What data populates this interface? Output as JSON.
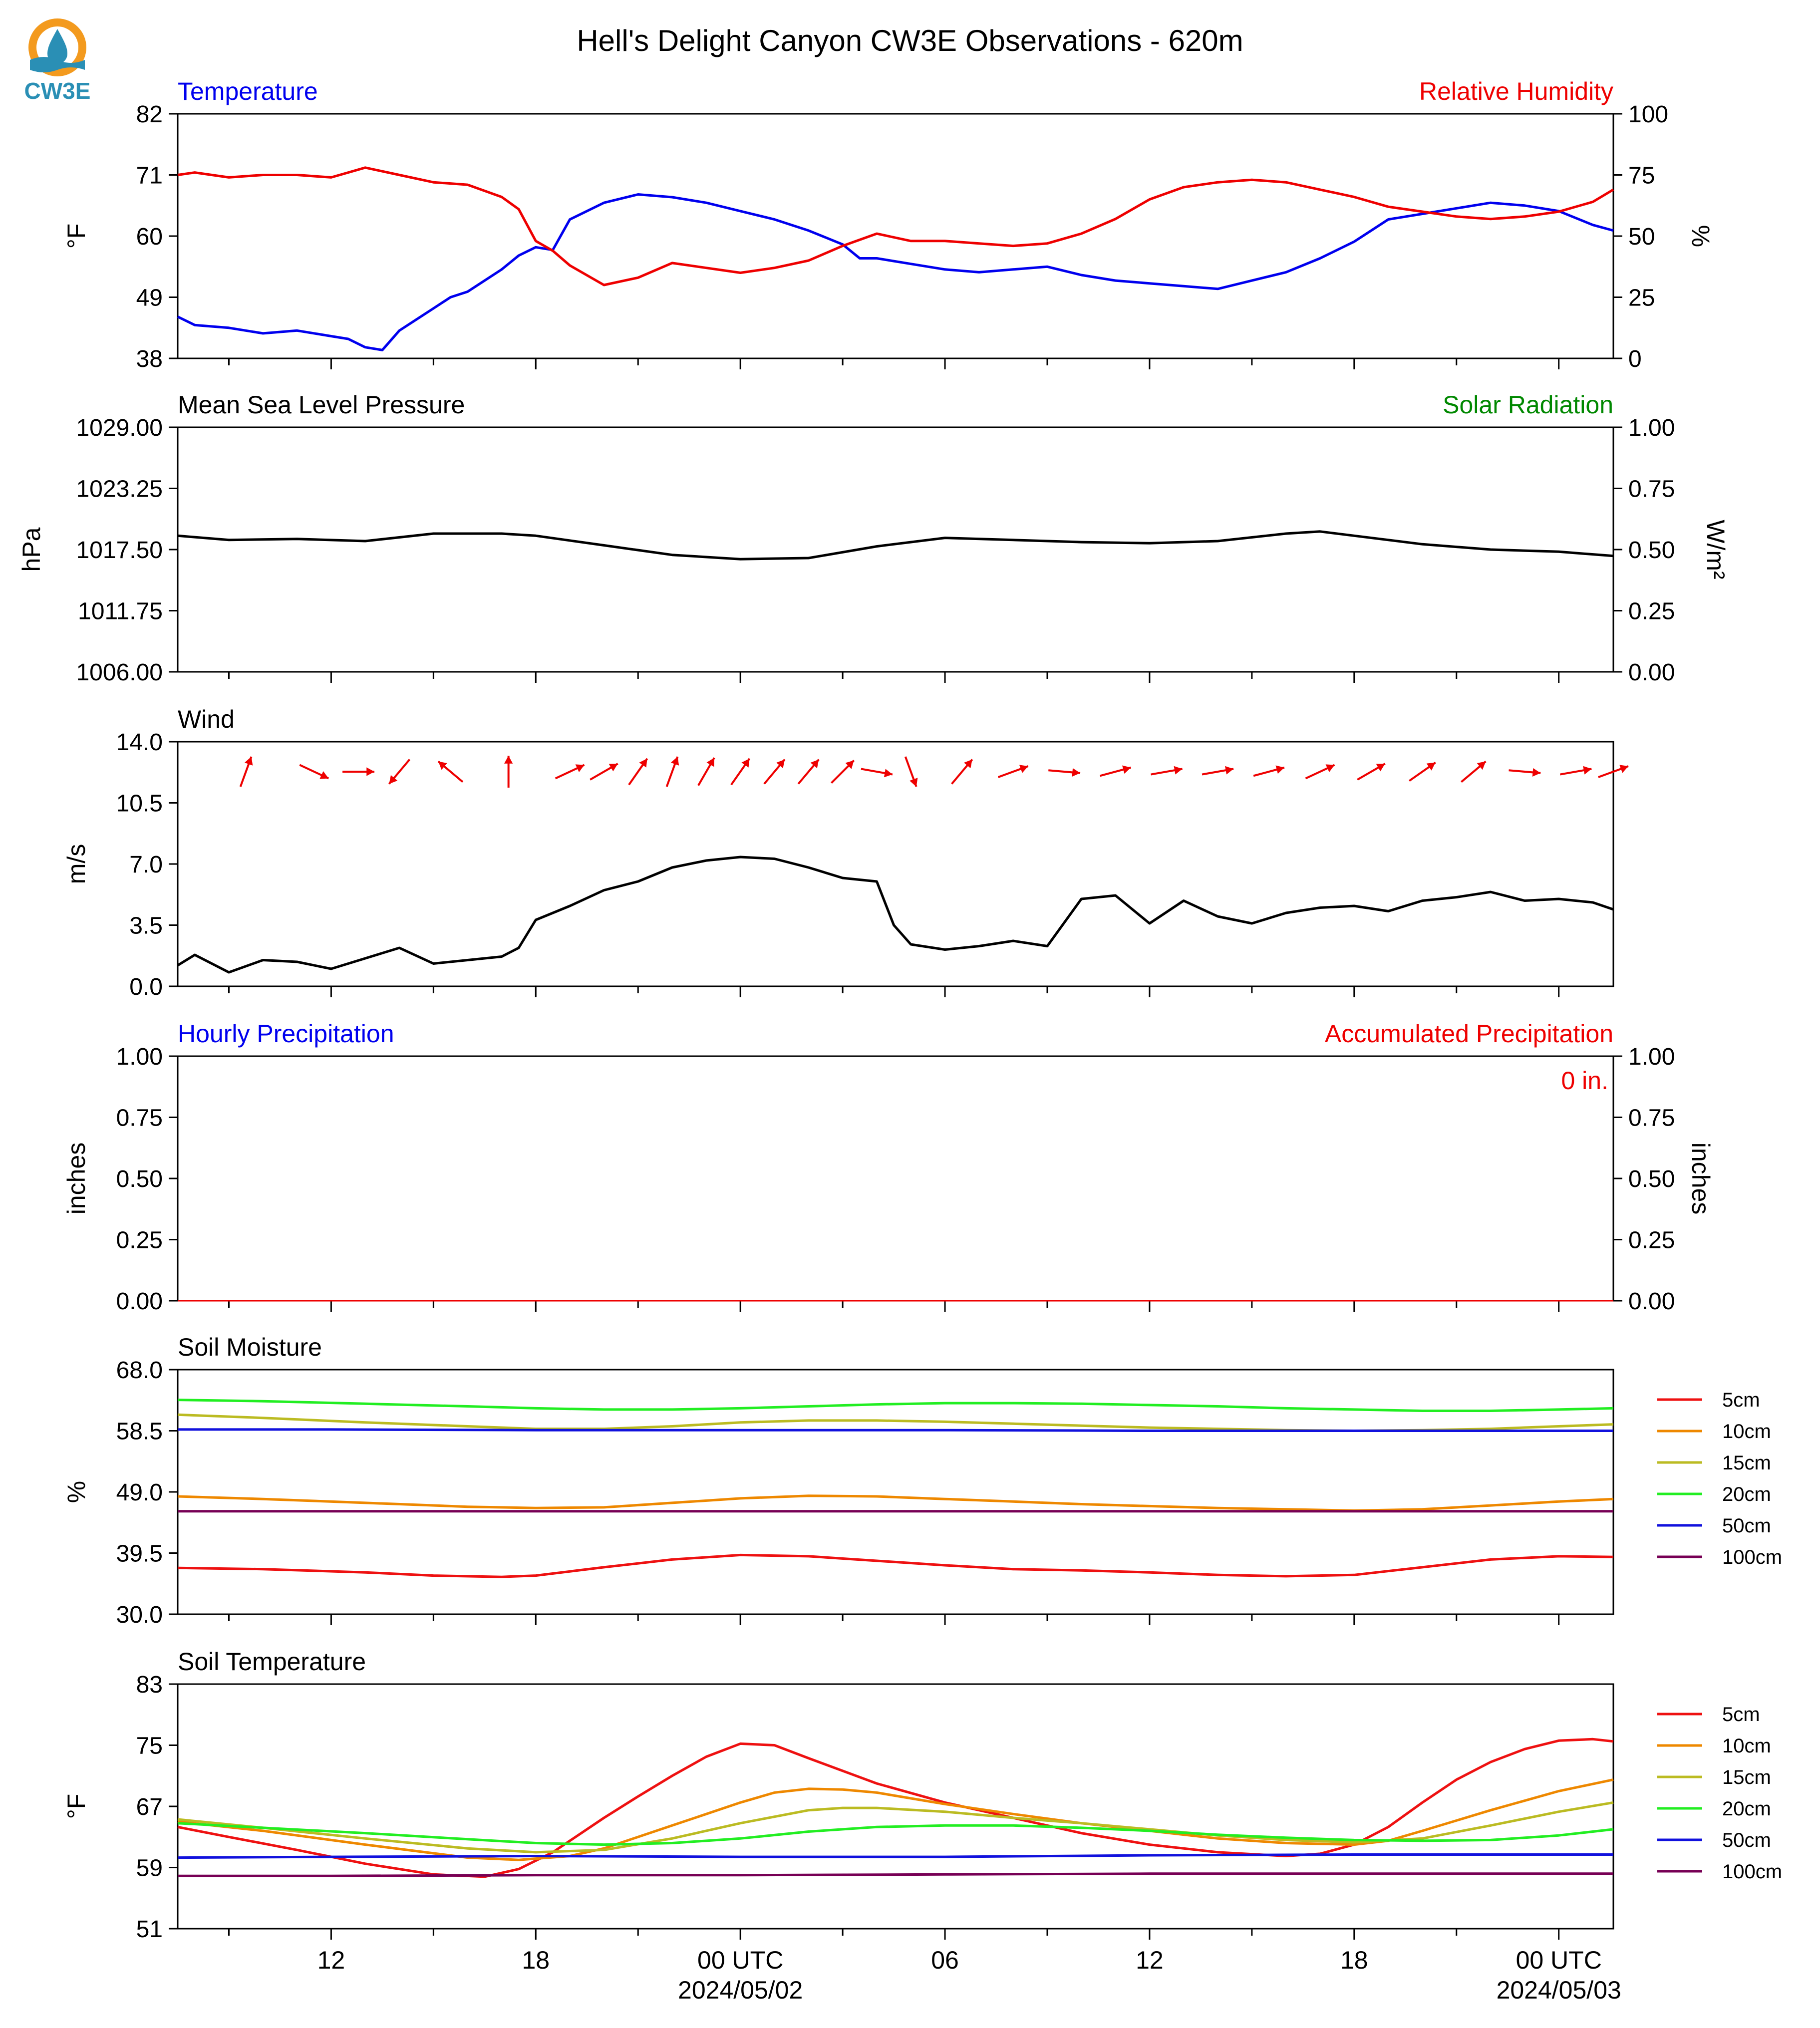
{
  "title": "Hell's Delight Canyon CW3E Observations - 620m",
  "logo": {
    "text": "CW3E",
    "color": "#2a8fb5"
  },
  "x_axis": {
    "tick_labels": [
      "12",
      "18",
      "00 UTC",
      "06",
      "12",
      "18",
      "00 UTC"
    ],
    "date_labels": [
      "2024/05/02",
      "2024/05/03"
    ],
    "start_hour": 7.5,
    "end_hour": 49.6,
    "label_hours": [
      12,
      18,
      24,
      30,
      36,
      42,
      48
    ],
    "date_hours": [
      24,
      48
    ]
  },
  "colors": {
    "temperature": "#0000ee",
    "humidity": "#ee0000",
    "pressure": "#000000",
    "solar": "#008800",
    "wind": "#000000",
    "wind_arrow": "#ee0000",
    "hourly_precip": "#0000ee",
    "accum_precip": "#ee0000",
    "depth": [
      "#ee1111",
      "#ee8800",
      "#bbbb22",
      "#22ee22",
      "#1111dd",
      "#770055"
    ]
  },
  "chart_data": [
    {
      "id": "temp-rh",
      "type": "line",
      "title_left": "Temperature",
      "title_right": "Relative Humidity",
      "ylabel_left": "°F",
      "ylabel_right": "%",
      "ylim_left": [
        38,
        82
      ],
      "yticks_left": [
        "82",
        "71",
        "60",
        "49",
        "38"
      ],
      "ylim_right": [
        0,
        100
      ],
      "yticks_right": [
        "100",
        "75",
        "50",
        "25",
        "0"
      ],
      "series": [
        {
          "name": "Temperature",
          "axis": "left",
          "x": [
            7.5,
            8,
            9,
            10,
            11,
            12,
            12.5,
            13,
            13.5,
            14,
            15,
            15.5,
            16,
            17,
            17.5,
            18,
            18.5,
            19,
            20,
            21,
            22,
            23,
            24,
            25,
            26,
            27,
            27.5,
            28,
            29,
            30,
            31,
            32,
            33,
            34,
            35,
            36,
            37,
            38,
            39,
            40,
            41,
            42,
            42.5,
            43,
            44,
            45,
            46,
            47,
            48,
            49,
            49.6
          ],
          "y": [
            45.5,
            44,
            43.5,
            42.5,
            43,
            42,
            41.5,
            40,
            39.5,
            43,
            47,
            49,
            50,
            54,
            56.5,
            58,
            57.5,
            63,
            66,
            67.5,
            67,
            66,
            64.5,
            63,
            61,
            58.5,
            56,
            56,
            55,
            54,
            53.5,
            54,
            54.5,
            53,
            52,
            51.5,
            51,
            50.5,
            52,
            53.5,
            56,
            59,
            61,
            63,
            64,
            65,
            66,
            65.5,
            64.5,
            62,
            61
          ]
        },
        {
          "name": "Relative Humidity",
          "axis": "right",
          "x": [
            7.5,
            8,
            9,
            10,
            11,
            12,
            12.5,
            13,
            14,
            15,
            16,
            17,
            17.5,
            18,
            18.5,
            19,
            20,
            21,
            22,
            23,
            24,
            25,
            26,
            27,
            28,
            29,
            30,
            31,
            32,
            33,
            34,
            35,
            36,
            37,
            38,
            39,
            40,
            41,
            42,
            43,
            44,
            45,
            46,
            47,
            48,
            49,
            49.6
          ],
          "y": [
            75,
            76,
            74,
            75,
            75,
            74,
            76,
            78,
            75,
            72,
            71,
            66,
            61,
            48,
            44,
            38,
            30,
            33,
            39,
            37,
            35,
            37,
            40,
            46,
            51,
            48,
            48,
            47,
            46,
            47,
            51,
            57,
            65,
            70,
            72,
            73,
            72,
            69,
            66,
            62,
            60,
            58,
            57,
            58,
            60,
            64,
            69
          ]
        }
      ]
    },
    {
      "id": "pressure-solar",
      "type": "line",
      "title_left": "Mean Sea Level Pressure",
      "title_right": "Solar Radiation",
      "ylabel_left": "hPa",
      "ylabel_right": "W/m²",
      "ylim_left": [
        1006,
        1029
      ],
      "yticks_left": [
        "1029.00",
        "1023.25",
        "1017.50",
        "1011.75",
        "1006.00"
      ],
      "ylim_right": [
        0,
        1
      ],
      "yticks_right": [
        "1.00",
        "0.75",
        "0.50",
        "0.25",
        "0.00"
      ],
      "series": [
        {
          "name": "Mean Sea Level Pressure",
          "axis": "left",
          "x": [
            7.5,
            9,
            11,
            13,
            15,
            17,
            18,
            20,
            22,
            24,
            26,
            28,
            30,
            32,
            34,
            36,
            38,
            40,
            41,
            42,
            44,
            46,
            48,
            49.6
          ],
          "y": [
            1018.8,
            1018.4,
            1018.5,
            1018.3,
            1019.0,
            1019.0,
            1018.8,
            1017.9,
            1017.0,
            1016.6,
            1016.7,
            1017.8,
            1018.6,
            1018.4,
            1018.2,
            1018.1,
            1018.3,
            1019.0,
            1019.2,
            1018.8,
            1018.0,
            1017.5,
            1017.3,
            1016.9
          ]
        }
      ]
    },
    {
      "id": "wind",
      "type": "line",
      "title_left": "Wind",
      "ylabel_left": "m/s",
      "ylim_left": [
        0,
        14
      ],
      "yticks_left": [
        "14.0",
        "10.5",
        "7.0",
        "3.5",
        "0.0"
      ],
      "series": [
        {
          "name": "Wind",
          "axis": "left",
          "x": [
            7.5,
            8,
            9,
            10,
            11,
            12,
            13,
            14,
            15,
            16,
            17,
            17.5,
            18,
            19,
            20,
            21,
            22,
            23,
            24,
            25,
            26,
            27,
            28,
            28.5,
            29,
            30,
            31,
            32,
            33,
            34,
            35,
            36,
            37,
            38,
            39,
            40,
            41,
            42,
            43,
            44,
            45,
            46,
            47,
            48,
            49,
            49.6
          ],
          "y": [
            1.2,
            1.8,
            0.8,
            1.5,
            1.4,
            1.0,
            1.6,
            2.2,
            1.3,
            1.5,
            1.7,
            2.2,
            3.8,
            4.6,
            5.5,
            6.0,
            6.8,
            7.2,
            7.4,
            7.3,
            6.8,
            6.2,
            6.0,
            3.5,
            2.4,
            2.1,
            2.3,
            2.6,
            2.3,
            5.0,
            5.2,
            3.6,
            4.9,
            4.0,
            3.6,
            4.2,
            4.5,
            4.6,
            4.3,
            4.9,
            5.1,
            5.4,
            4.9,
            5.0,
            4.8,
            4.4
          ]
        }
      ],
      "arrows": {
        "x": [
          9.5,
          11.5,
          12.8,
          14.0,
          15.5,
          17.2,
          19.0,
          20.0,
          21.0,
          22.0,
          23.0,
          24.0,
          25.0,
          26.0,
          27.0,
          28.0,
          29.0,
          30.5,
          32.0,
          33.5,
          35.0,
          36.5,
          38.0,
          39.5,
          41.0,
          42.5,
          44.0,
          45.5,
          47.0,
          48.5,
          49.6
        ],
        "dir_deg": [
          20,
          115,
          90,
          220,
          310,
          0,
          65,
          60,
          35,
          20,
          30,
          35,
          40,
          40,
          45,
          100,
          160,
          40,
          70,
          95,
          75,
          80,
          80,
          75,
          65,
          60,
          55,
          50,
          95,
          80,
          70
        ]
      }
    },
    {
      "id": "precip",
      "type": "line",
      "title_left": "Hourly Precipitation",
      "title_right": "Accumulated Precipitation",
      "annotation": "0 in.",
      "ylabel_left": "inches",
      "ylabel_right": "inches",
      "ylim_left": [
        0,
        1
      ],
      "yticks_left": [
        "1.00",
        "0.75",
        "0.50",
        "0.25",
        "0.00"
      ],
      "ylim_right": [
        0,
        1
      ],
      "yticks_right": [
        "1.00",
        "0.75",
        "0.50",
        "0.25",
        "0.00"
      ],
      "series": [
        {
          "name": "Accumulated Precipitation",
          "axis": "left",
          "x": [
            7.5,
            49.6
          ],
          "y": [
            0,
            0
          ]
        }
      ]
    },
    {
      "id": "soil-moisture",
      "type": "line",
      "title_left": "Soil Moisture",
      "ylabel_left": "%",
      "ylim_left": [
        30,
        68
      ],
      "yticks_left": [
        "68.0",
        "58.5",
        "49.0",
        "39.5",
        "30.0"
      ],
      "legend": [
        "5cm",
        "10cm",
        "15cm",
        "20cm",
        "50cm",
        "100cm"
      ],
      "series": [
        {
          "name": "5cm",
          "x": [
            7.5,
            10,
            13,
            15,
            17,
            18,
            20,
            22,
            24,
            26,
            28,
            30,
            32,
            34,
            36,
            38,
            40,
            42,
            44,
            46,
            48,
            49.6
          ],
          "y": [
            37.2,
            37.0,
            36.5,
            36.0,
            35.8,
            36.0,
            37.3,
            38.5,
            39.2,
            39.0,
            38.3,
            37.6,
            37.0,
            36.8,
            36.5,
            36.1,
            35.9,
            36.1,
            37.3,
            38.5,
            39.0,
            38.9
          ]
        },
        {
          "name": "10cm",
          "x": [
            7.5,
            10,
            13,
            16,
            18,
            20,
            22,
            24,
            26,
            28,
            30,
            32,
            34,
            36,
            38,
            40,
            42,
            44,
            46,
            48,
            49.6
          ],
          "y": [
            48.3,
            47.9,
            47.3,
            46.7,
            46.5,
            46.6,
            47.3,
            48.0,
            48.4,
            48.3,
            47.9,
            47.5,
            47.1,
            46.8,
            46.5,
            46.3,
            46.1,
            46.3,
            46.9,
            47.5,
            47.9
          ]
        },
        {
          "name": "15cm",
          "x": [
            7.5,
            10,
            13,
            16,
            18,
            20,
            22,
            24,
            26,
            28,
            30,
            32,
            34,
            36,
            38,
            40,
            42,
            44,
            46,
            48,
            49.6
          ],
          "y": [
            61.0,
            60.5,
            59.8,
            59.2,
            58.8,
            58.8,
            59.2,
            59.8,
            60.1,
            60.1,
            59.9,
            59.6,
            59.3,
            59.0,
            58.8,
            58.6,
            58.5,
            58.6,
            58.8,
            59.2,
            59.5
          ]
        },
        {
          "name": "20cm",
          "x": [
            7.5,
            10,
            13,
            16,
            18,
            20,
            22,
            24,
            26,
            28,
            30,
            32,
            34,
            36,
            38,
            40,
            42,
            44,
            46,
            48,
            49.6
          ],
          "y": [
            63.3,
            63.1,
            62.7,
            62.3,
            62.0,
            61.8,
            61.8,
            62.0,
            62.3,
            62.6,
            62.8,
            62.8,
            62.7,
            62.5,
            62.3,
            62.0,
            61.8,
            61.6,
            61.6,
            61.8,
            62.0
          ]
        },
        {
          "name": "50cm",
          "x": [
            7.5,
            12,
            18,
            24,
            30,
            36,
            42,
            48,
            49.6
          ],
          "y": [
            58.7,
            58.7,
            58.6,
            58.6,
            58.6,
            58.5,
            58.5,
            58.5,
            58.5
          ]
        },
        {
          "name": "100cm",
          "x": [
            7.5,
            12,
            18,
            24,
            30,
            36,
            42,
            48,
            49.6
          ],
          "y": [
            46.0,
            46.0,
            46.0,
            46.0,
            46.0,
            46.0,
            46.0,
            46.0,
            46.0
          ]
        }
      ]
    },
    {
      "id": "soil-temperature",
      "type": "line",
      "title_left": "Soil Temperature",
      "ylabel_left": "°F",
      "ylim_left": [
        51,
        83
      ],
      "yticks_left": [
        "83",
        "75",
        "67",
        "59",
        "51"
      ],
      "legend": [
        "5cm",
        "10cm",
        "15cm",
        "20cm",
        "50cm",
        "100cm"
      ],
      "series": [
        {
          "name": "5cm",
          "x": [
            7.5,
            9,
            11,
            13,
            15,
            16.5,
            17.5,
            18.5,
            20,
            21,
            22,
            23,
            24,
            25,
            26,
            28,
            30,
            32,
            34,
            36,
            38,
            40,
            41,
            42,
            43,
            44,
            45,
            46,
            47,
            48,
            49,
            49.6
          ],
          "y": [
            64.3,
            63.0,
            61.3,
            59.5,
            58.1,
            57.8,
            58.8,
            61.0,
            65.5,
            68.3,
            71.0,
            73.5,
            75.2,
            75.0,
            73.3,
            70.0,
            67.5,
            65.5,
            63.5,
            62.0,
            61.0,
            60.5,
            60.8,
            62.0,
            64.3,
            67.5,
            70.5,
            72.8,
            74.5,
            75.6,
            75.8,
            75.5
          ]
        },
        {
          "name": "10cm",
          "x": [
            7.5,
            10,
            13,
            16,
            17.5,
            19,
            20,
            22,
            24,
            25,
            26,
            27,
            28,
            30,
            32,
            34,
            36,
            38,
            40,
            42,
            43,
            44,
            46,
            48,
            49.6
          ],
          "y": [
            65.0,
            63.8,
            62.0,
            60.3,
            60.0,
            60.5,
            61.5,
            64.5,
            67.5,
            68.8,
            69.3,
            69.2,
            68.8,
            67.3,
            66.0,
            64.8,
            63.8,
            62.8,
            62.2,
            62.0,
            62.5,
            63.8,
            66.5,
            69.0,
            70.5
          ]
        },
        {
          "name": "15cm",
          "x": [
            7.5,
            10,
            13,
            16,
            18,
            20,
            22,
            24,
            26,
            27,
            28,
            30,
            32,
            34,
            36,
            38,
            40,
            42,
            44,
            46,
            48,
            49.6
          ],
          "y": [
            65.3,
            64.2,
            62.8,
            61.5,
            61.0,
            61.3,
            62.8,
            64.8,
            66.5,
            66.8,
            66.8,
            66.3,
            65.5,
            64.8,
            64.0,
            63.2,
            62.6,
            62.3,
            62.8,
            64.5,
            66.3,
            67.5
          ]
        },
        {
          "name": "20cm",
          "x": [
            7.5,
            10,
            13,
            16,
            18,
            20,
            22,
            24,
            26,
            28,
            30,
            32,
            34,
            36,
            38,
            40,
            42,
            44,
            46,
            48,
            49.6
          ],
          "y": [
            64.8,
            64.2,
            63.5,
            62.7,
            62.2,
            62.0,
            62.2,
            62.8,
            63.7,
            64.3,
            64.5,
            64.5,
            64.2,
            63.8,
            63.3,
            62.9,
            62.6,
            62.5,
            62.6,
            63.2,
            64.0
          ]
        },
        {
          "name": "50cm",
          "x": [
            7.5,
            12,
            18,
            24,
            30,
            36,
            42,
            48,
            49.6
          ],
          "y": [
            60.3,
            60.4,
            60.5,
            60.4,
            60.4,
            60.6,
            60.7,
            60.7,
            60.7
          ]
        },
        {
          "name": "100cm",
          "x": [
            7.5,
            12,
            18,
            24,
            30,
            36,
            42,
            48,
            49.6
          ],
          "y": [
            57.9,
            57.9,
            58.0,
            58.0,
            58.1,
            58.2,
            58.2,
            58.2,
            58.2
          ]
        }
      ]
    }
  ]
}
